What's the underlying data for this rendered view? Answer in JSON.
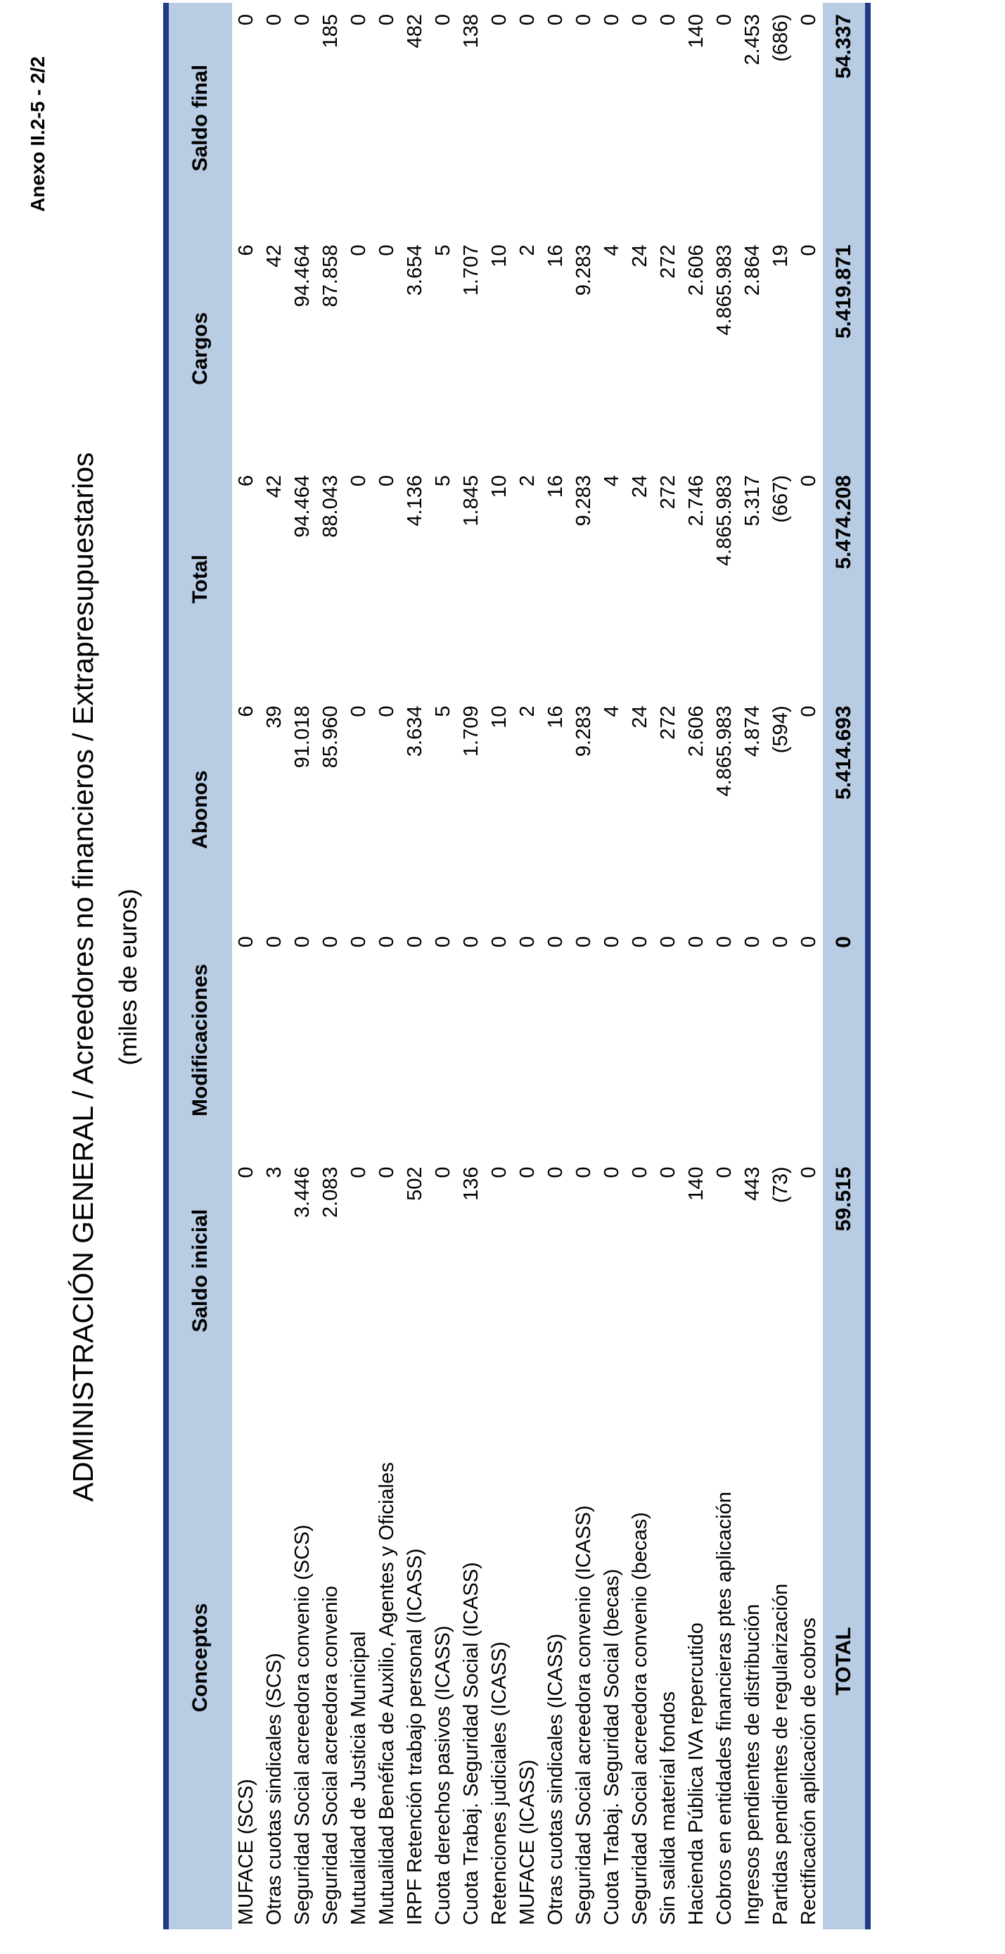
{
  "annex": "Anexo II.2-5 - 2/2",
  "title": "ADMINISTRACIÓN GENERAL  /  Acreedores no financieros  /  Extrapresupuestarios",
  "subtitle": "(miles de euros)",
  "table": {
    "headers": [
      "Conceptos",
      "Saldo inicial",
      "Modificaciones",
      "Abonos",
      "Total",
      "Cargos",
      "Saldo final"
    ],
    "rows": [
      [
        "MUFACE (SCS)",
        "0",
        "0",
        "6",
        "6",
        "6",
        "0"
      ],
      [
        "Otras cuotas sindicales (SCS)",
        "3",
        "0",
        "39",
        "42",
        "42",
        "0"
      ],
      [
        "Seguridad Social acreedora convenio (SCS)",
        "3.446",
        "0",
        "91.018",
        "94.464",
        "94.464",
        "0"
      ],
      [
        "Seguridad Social acreedora convenio",
        "2.083",
        "0",
        "85.960",
        "88.043",
        "87.858",
        "185"
      ],
      [
        "Mutualidad de Justicia Municipal",
        "0",
        "0",
        "0",
        "0",
        "0",
        "0"
      ],
      [
        "Mutualidad Benéfica de Auxilio, Agentes y Oficiales",
        "0",
        "0",
        "0",
        "0",
        "0",
        "0"
      ],
      [
        "IRPF Retención trabajo personal (ICASS)",
        "502",
        "0",
        "3.634",
        "4.136",
        "3.654",
        "482"
      ],
      [
        "Cuota derechos pasivos (ICASS)",
        "0",
        "0",
        "5",
        "5",
        "5",
        "0"
      ],
      [
        "Cuota Trabaj. Seguridad Social (ICASS)",
        "136",
        "0",
        "1.709",
        "1.845",
        "1.707",
        "138"
      ],
      [
        "Retenciones judiciales (ICASS)",
        "0",
        "0",
        "10",
        "10",
        "10",
        "0"
      ],
      [
        "MUFACE (ICASS)",
        "0",
        "0",
        "2",
        "2",
        "2",
        "0"
      ],
      [
        "Otras cuotas sindicales (ICASS)",
        "0",
        "0",
        "16",
        "16",
        "16",
        "0"
      ],
      [
        "Seguridad Social acreedora convenio (ICASS)",
        "0",
        "0",
        "9.283",
        "9.283",
        "9.283",
        "0"
      ],
      [
        "Cuota Trabaj. Seguridad Social (becas)",
        "0",
        "0",
        "4",
        "4",
        "4",
        "0"
      ],
      [
        "Seguridad Social acreedora convenio (becas)",
        "0",
        "0",
        "24",
        "24",
        "24",
        "0"
      ],
      [
        "Sin salida material fondos",
        "0",
        "0",
        "272",
        "272",
        "272",
        "0"
      ],
      [
        "Hacienda Pública IVA repercutido",
        "140",
        "0",
        "2.606",
        "2.746",
        "2.606",
        "140"
      ],
      [
        "Cobros en entidades financieras ptes aplicación",
        "0",
        "0",
        "4.865.983",
        "4.865.983",
        "4.865.983",
        "0"
      ],
      [
        "Ingresos pendientes de distribución",
        "443",
        "0",
        "4.874",
        "5.317",
        "2.864",
        "2.453"
      ],
      [
        "Partidas pendientes de regularización",
        "(73)",
        "0",
        "(594)",
        "(667)",
        "19",
        "(686)"
      ],
      [
        "Rectificación aplicación de cobros",
        "0",
        "0",
        "0",
        "0",
        "0",
        "0"
      ]
    ],
    "total": [
      "TOTAL",
      "59.515",
      "0",
      "5.414.693",
      "5.474.208",
      "5.419.871",
      "54.337"
    ]
  }
}
